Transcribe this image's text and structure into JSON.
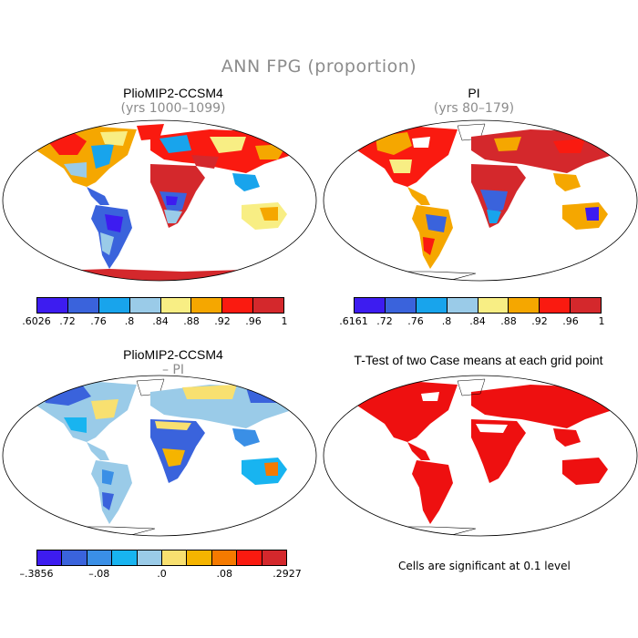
{
  "title": "ANN FPG (proportion)",
  "panels": [
    {
      "title": "PlioMIP2-CCSM4",
      "subtitle": "(yrs 1000–1099)"
    },
    {
      "title": "PI",
      "subtitle": "(yrs 80–179)"
    },
    {
      "title": "PlioMIP2-CCSM4",
      "subtitle": "– PI"
    },
    {
      "title": "T-Test of two Case means at each grid point",
      "subtitle": ""
    }
  ],
  "colorbars": [
    {
      "colors": [
        "#3d1cf0",
        "#3a63dc",
        "#18a4ec",
        "#9acbe8",
        "#f8ee84",
        "#f5a700",
        "#fa1a10",
        "#d4282c"
      ],
      "labels": [
        ".6026",
        ".72",
        ".76",
        ".8",
        ".84",
        ".88",
        ".92",
        ".96",
        "1"
      ]
    },
    {
      "colors": [
        "#3d1cf0",
        "#3a63dc",
        "#18a4ec",
        "#9acbe8",
        "#f8ee84",
        "#f5a700",
        "#fa1a10",
        "#d4282c"
      ],
      "labels": [
        ".6161",
        ".72",
        ".76",
        ".8",
        ".84",
        ".88",
        ".92",
        ".96",
        "1"
      ]
    },
    {
      "colors": [
        "#3d1cf0",
        "#3a63dc",
        "#3a8fe6",
        "#18b4f0",
        "#9acbe8",
        "#f8e070",
        "#f5b400",
        "#f57a00",
        "#fa1a10",
        "#d4282c"
      ],
      "labels": [
        "–.3856",
        "–.08",
        ".0",
        ".08",
        ".2927"
      ]
    }
  ],
  "significance_note": "Cells are significant at 0.1 level",
  "significance_color": "#ee1010"
}
